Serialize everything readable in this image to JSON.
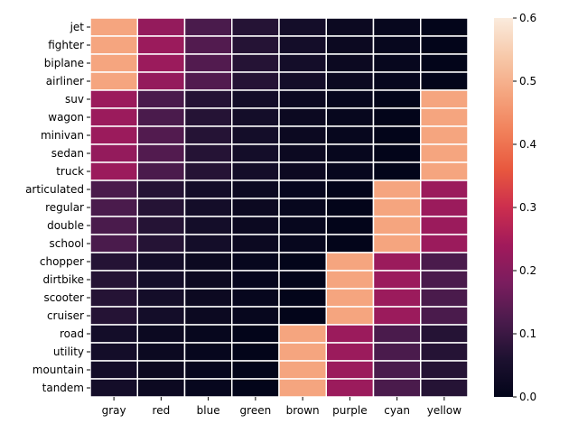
{
  "chart_data": {
    "type": "heatmap",
    "title": "",
    "xlabel": "",
    "ylabel": "",
    "columns": [
      "gray",
      "red",
      "blue",
      "green",
      "brown",
      "purple",
      "cyan",
      "yellow"
    ],
    "rows": [
      "jet",
      "fighter",
      "biplane",
      "airliner",
      "suv",
      "wagon",
      "minivan",
      "sedan",
      "truck",
      "articulated",
      "regular",
      "double",
      "school",
      "chopper",
      "dirtbike",
      "scooter",
      "cruiser",
      "road",
      "utility",
      "mountain",
      "tandem"
    ],
    "values": [
      [
        0.48,
        0.22,
        0.12,
        0.07,
        0.04,
        0.02,
        0.01,
        0.0
      ],
      [
        0.48,
        0.23,
        0.13,
        0.07,
        0.04,
        0.02,
        0.01,
        0.0
      ],
      [
        0.48,
        0.23,
        0.13,
        0.07,
        0.04,
        0.02,
        0.01,
        0.0
      ],
      [
        0.48,
        0.22,
        0.13,
        0.07,
        0.04,
        0.02,
        0.01,
        0.0
      ],
      [
        0.23,
        0.12,
        0.07,
        0.04,
        0.02,
        0.01,
        0.0,
        0.48
      ],
      [
        0.23,
        0.12,
        0.07,
        0.04,
        0.02,
        0.01,
        0.0,
        0.48
      ],
      [
        0.23,
        0.13,
        0.07,
        0.04,
        0.02,
        0.01,
        0.0,
        0.48
      ],
      [
        0.22,
        0.13,
        0.07,
        0.04,
        0.02,
        0.01,
        0.0,
        0.48
      ],
      [
        0.23,
        0.12,
        0.07,
        0.04,
        0.02,
        0.01,
        0.0,
        0.48
      ],
      [
        0.12,
        0.07,
        0.04,
        0.02,
        0.01,
        0.0,
        0.48,
        0.23
      ],
      [
        0.12,
        0.07,
        0.04,
        0.02,
        0.01,
        0.0,
        0.48,
        0.23
      ],
      [
        0.12,
        0.07,
        0.04,
        0.02,
        0.01,
        0.0,
        0.48,
        0.23
      ],
      [
        0.12,
        0.07,
        0.04,
        0.02,
        0.01,
        0.0,
        0.48,
        0.23
      ],
      [
        0.07,
        0.04,
        0.02,
        0.01,
        0.0,
        0.48,
        0.23,
        0.12
      ],
      [
        0.07,
        0.04,
        0.02,
        0.01,
        0.0,
        0.48,
        0.23,
        0.12
      ],
      [
        0.07,
        0.04,
        0.02,
        0.01,
        0.0,
        0.48,
        0.23,
        0.12
      ],
      [
        0.07,
        0.04,
        0.02,
        0.01,
        0.0,
        0.48,
        0.23,
        0.12
      ],
      [
        0.04,
        0.02,
        0.01,
        0.0,
        0.48,
        0.23,
        0.12,
        0.07
      ],
      [
        0.04,
        0.02,
        0.01,
        0.0,
        0.48,
        0.23,
        0.12,
        0.07
      ],
      [
        0.04,
        0.02,
        0.01,
        0.0,
        0.48,
        0.23,
        0.12,
        0.07
      ],
      [
        0.04,
        0.02,
        0.01,
        0.0,
        0.48,
        0.23,
        0.12,
        0.07
      ]
    ],
    "colorbar": {
      "range": [
        0.0,
        0.6
      ],
      "ticks": [
        0.0,
        0.1,
        0.2,
        0.3,
        0.4,
        0.5,
        0.6
      ],
      "tick_labels": [
        "0.0",
        "0.1",
        "0.2",
        "0.3",
        "0.4",
        "0.5",
        "0.6"
      ]
    },
    "colormap": "rocket",
    "colormap_stops": [
      {
        "v": 0.0,
        "color": "#03051a"
      },
      {
        "v": 0.1,
        "color": "#1d1130"
      },
      {
        "v": 0.2,
        "color": "#4a1b4c"
      },
      {
        "v": 0.3,
        "color": "#7a1d5e"
      },
      {
        "v": 0.4,
        "color": "#a11a5b"
      },
      {
        "v": 0.5,
        "color": "#cc2e4e"
      },
      {
        "v": 0.6,
        "color": "#e8583e"
      },
      {
        "v": 0.7,
        "color": "#f1805a"
      },
      {
        "v": 0.8,
        "color": "#f5a57f"
      },
      {
        "v": 0.9,
        "color": "#f7c9aa"
      },
      {
        "v": 1.0,
        "color": "#faebdd"
      }
    ],
    "gridline_color": "#ffffff"
  }
}
